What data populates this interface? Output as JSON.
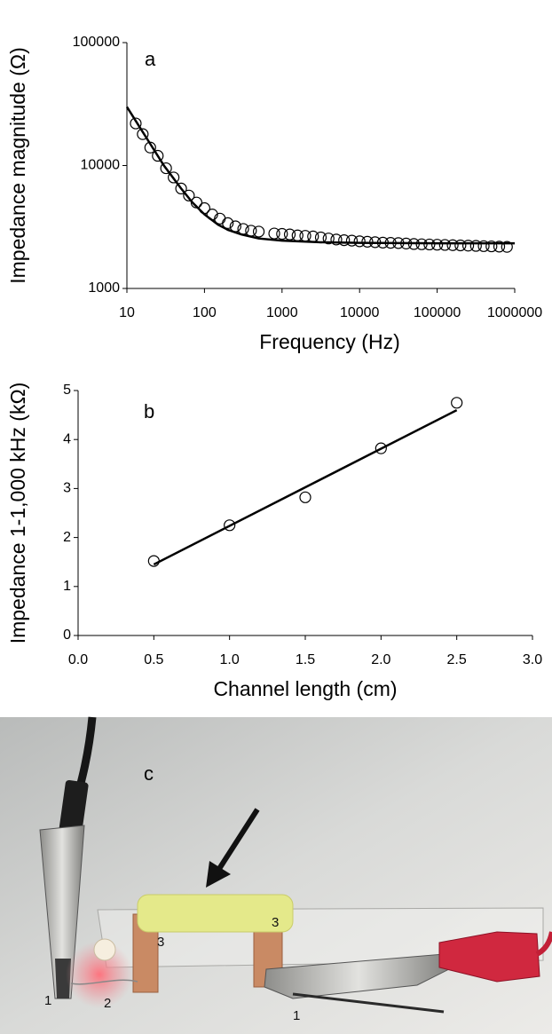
{
  "chart_data": [
    {
      "type": "scatter",
      "panel_label": "a",
      "x_label": "Frequency (Hz)",
      "y_label": "Impedance magnitude (Ω)",
      "xscale": "log",
      "yscale": "log",
      "xlim": [
        10,
        1000000
      ],
      "ylim": [
        1000,
        100000
      ],
      "xticks": [
        10,
        100,
        1000,
        10000,
        100000,
        1000000
      ],
      "yticks": [
        1000,
        10000,
        100000
      ],
      "grid": false,
      "series": [
        {
          "type": "scatter",
          "marker": "open-circle",
          "color": "#000000",
          "x": [
            13,
            16,
            20,
            25,
            32,
            40,
            50,
            63,
            79,
            100,
            126,
            158,
            200,
            251,
            316,
            398,
            501,
            794,
            1000,
            1259,
            1585,
            1995,
            2512,
            3162,
            3981,
            5012,
            6310,
            7943,
            10000,
            12589,
            15849,
            19953,
            25119,
            31623,
            39811,
            50119,
            63096,
            79433,
            100000,
            125893,
            158489,
            199526,
            251189,
            316228,
            398107,
            501187,
            630957,
            794328
          ],
          "values": [
            22000,
            18000,
            14000,
            12000,
            9500,
            8000,
            6500,
            5700,
            5000,
            4500,
            4000,
            3700,
            3400,
            3200,
            3050,
            2950,
            2900,
            2800,
            2780,
            2750,
            2700,
            2680,
            2650,
            2600,
            2550,
            2500,
            2470,
            2450,
            2420,
            2400,
            2380,
            2360,
            2350,
            2340,
            2320,
            2300,
            2290,
            2280,
            2270,
            2260,
            2250,
            2240,
            2230,
            2220,
            2210,
            2200,
            2190,
            2180
          ]
        },
        {
          "type": "line",
          "color": "#000000",
          "x": [
            10,
            15,
            20,
            30,
            50,
            70,
            100,
            150,
            200,
            300,
            500,
            1000,
            3000,
            10000,
            100000,
            1000000
          ],
          "values": [
            30000,
            20000,
            15000,
            10000,
            6500,
            5000,
            4000,
            3300,
            3000,
            2750,
            2550,
            2450,
            2380,
            2350,
            2330,
            2330
          ]
        }
      ]
    },
    {
      "type": "scatter",
      "panel_label": "b",
      "x_label": "Channel length (cm)",
      "y_label": "Impedance 1-1,000 kHz (kΩ)",
      "xlim": [
        0,
        3
      ],
      "ylim": [
        0,
        5
      ],
      "xticks": [
        {
          "value": 0,
          "label": "0.0"
        },
        {
          "value": 0.5,
          "label": "0.5"
        },
        {
          "value": 1,
          "label": "1.0"
        },
        {
          "value": 1.5,
          "label": "1.5"
        },
        {
          "value": 2,
          "label": "2.0"
        },
        {
          "value": 2.5,
          "label": "2.5"
        },
        {
          "value": 3,
          "label": "3.0"
        }
      ],
      "yticks": [
        0,
        1,
        2,
        3,
        4,
        5
      ],
      "grid": false,
      "series": [
        {
          "type": "scatter",
          "marker": "open-circle",
          "color": "#000000",
          "x": [
            0.5,
            1,
            1.5,
            2,
            2.5
          ],
          "values": [
            1.52,
            2.25,
            2.82,
            3.82,
            4.75
          ]
        },
        {
          "type": "line",
          "color": "#000000",
          "x": [
            0.5,
            2.5
          ],
          "values": [
            1.45,
            4.6
          ]
        }
      ]
    }
  ],
  "photo": {
    "panel_label": "c",
    "labels": [
      "1",
      "2",
      "3",
      "3",
      "1"
    ]
  }
}
